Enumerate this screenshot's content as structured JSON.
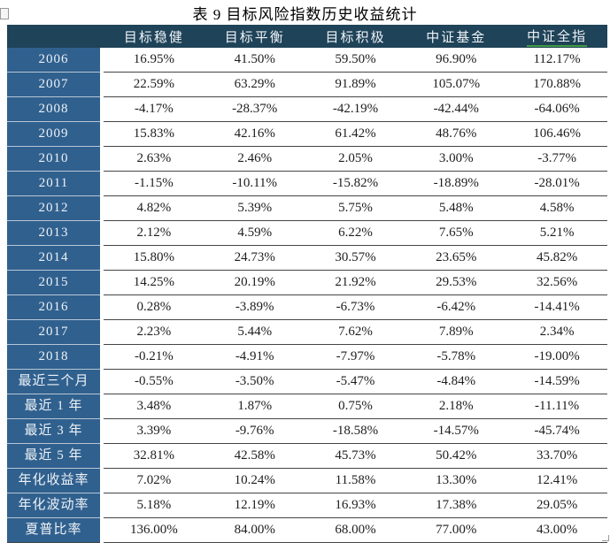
{
  "title": "表 9 目标风险指数历史收益统计",
  "table": {
    "columns": [
      "目标稳健",
      "目标平衡",
      "目标积极",
      "中证基金",
      "中证全指"
    ],
    "rows": [
      {
        "label": "2006",
        "values": [
          "16.95%",
          "41.50%",
          "59.50%",
          "96.90%",
          "112.17%"
        ]
      },
      {
        "label": "2007",
        "values": [
          "22.59%",
          "63.29%",
          "91.89%",
          "105.07%",
          "170.88%"
        ]
      },
      {
        "label": "2008",
        "values": [
          "-4.17%",
          "-28.37%",
          "-42.19%",
          "-42.44%",
          "-64.06%"
        ]
      },
      {
        "label": "2009",
        "values": [
          "15.83%",
          "42.16%",
          "61.42%",
          "48.76%",
          "106.46%"
        ]
      },
      {
        "label": "2010",
        "values": [
          "2.63%",
          "2.46%",
          "2.05%",
          "3.00%",
          "-3.77%"
        ]
      },
      {
        "label": "2011",
        "values": [
          "-1.15%",
          "-10.11%",
          "-15.82%",
          "-18.89%",
          "-28.01%"
        ]
      },
      {
        "label": "2012",
        "values": [
          "4.82%",
          "5.39%",
          "5.75%",
          "5.48%",
          "4.58%"
        ]
      },
      {
        "label": "2013",
        "values": [
          "2.12%",
          "4.59%",
          "6.22%",
          "7.65%",
          "5.21%"
        ]
      },
      {
        "label": "2014",
        "values": [
          "15.80%",
          "24.73%",
          "30.57%",
          "23.65%",
          "45.82%"
        ]
      },
      {
        "label": "2015",
        "values": [
          "14.25%",
          "20.19%",
          "21.92%",
          "29.53%",
          "32.56%"
        ]
      },
      {
        "label": "2016",
        "values": [
          "0.28%",
          "-3.89%",
          "-6.73%",
          "-6.42%",
          "-14.41%"
        ]
      },
      {
        "label": "2017",
        "values": [
          "2.23%",
          "5.44%",
          "7.62%",
          "7.89%",
          "2.34%"
        ]
      },
      {
        "label": "2018",
        "values": [
          "-0.21%",
          "-4.91%",
          "-7.97%",
          "-5.78%",
          "-19.00%"
        ]
      },
      {
        "label": "最近三个月",
        "values": [
          "-0.55%",
          "-3.50%",
          "-5.47%",
          "-4.84%",
          "-14.59%"
        ]
      },
      {
        "label": "最近 1 年",
        "values": [
          "3.48%",
          "1.87%",
          "0.75%",
          "2.18%",
          "-11.11%"
        ]
      },
      {
        "label": "最近 3 年",
        "values": [
          "3.39%",
          "-9.76%",
          "-18.58%",
          "-14.57%",
          "-45.74%"
        ]
      },
      {
        "label": "最近 5 年",
        "values": [
          "32.81%",
          "42.58%",
          "45.73%",
          "50.42%",
          "33.70%"
        ]
      },
      {
        "label": "年化收益率",
        "values": [
          "7.02%",
          "10.24%",
          "11.58%",
          "13.30%",
          "12.41%"
        ]
      },
      {
        "label": "年化波动率",
        "values": [
          "5.18%",
          "12.19%",
          "16.93%",
          "17.38%",
          "29.05%"
        ]
      },
      {
        "label": "夏普比率",
        "values": [
          "136.00%",
          "84.00%",
          "68.00%",
          "77.00%",
          "43.00%"
        ]
      }
    ]
  },
  "colors": {
    "header_bg": "#1f4358",
    "row_label_bg": "#30608e",
    "header_text": "#edf2f7",
    "value_text": "#1d1d1f",
    "grid_line": "#454545",
    "label_separator": "#b7c6d6",
    "spellcheck_underline": "#3f9b43"
  }
}
